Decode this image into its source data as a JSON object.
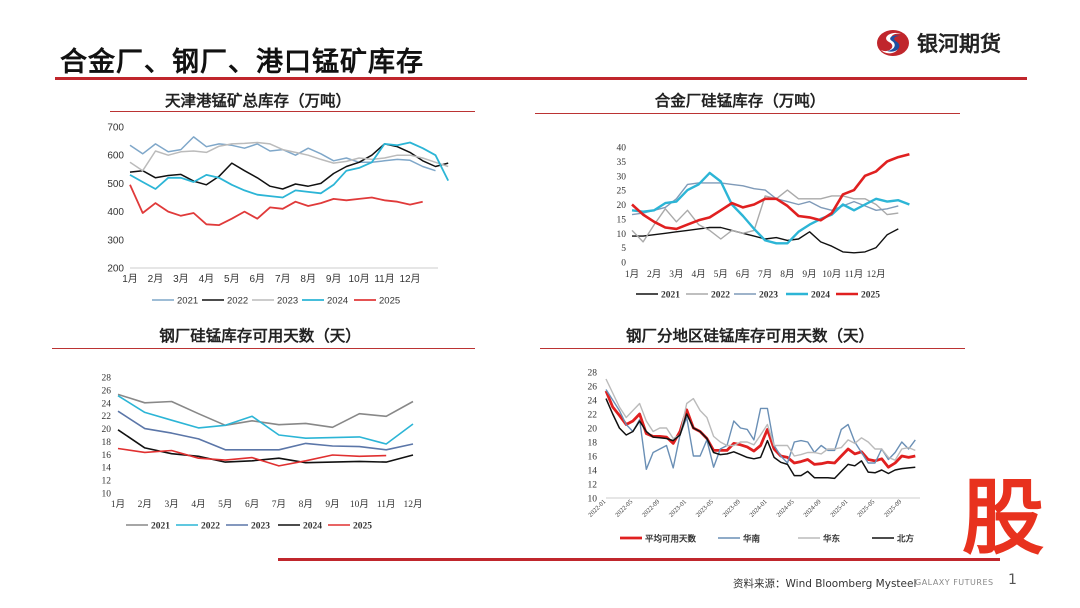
{
  "header": {
    "title": "合金厂、钢厂、港口锰矿库存",
    "logo_text": "银河期货",
    "brand_colors": {
      "red": "#c0262c",
      "blue": "#1f4fa0"
    }
  },
  "footer": {
    "source": "资料来源：Wind Bloomberg Mysteel",
    "brand_en": "GALAXY FUTURES",
    "page_number": "1",
    "watermark": "股"
  },
  "chart_data": [
    {
      "type": "line",
      "title": "天津港锰矿总库存（万吨）",
      "ylim": [
        200,
        700
      ],
      "yticks": [
        "200",
        "300",
        "400",
        "500",
        "600",
        "700"
      ],
      "xticks": [
        "1月",
        "2月",
        "3月",
        "4月",
        "5月",
        "6月",
        "7月",
        "8月",
        "9月",
        "10月",
        "11月",
        "12月"
      ],
      "legend": "bottom",
      "x_start_month": 1,
      "x_step_month": 0.5,
      "series": [
        {
          "name": "2021",
          "color": "#7fa7c9",
          "values": [
            635,
            605,
            640,
            612,
            620,
            665,
            630,
            640,
            635,
            625,
            640,
            615,
            620,
            600,
            625,
            605,
            580,
            590,
            575,
            575,
            580,
            585,
            582,
            560,
            545
          ]
        },
        {
          "name": "2022",
          "color": "#111111",
          "values": [
            540,
            545,
            520,
            528,
            532,
            508,
            495,
            525,
            572,
            545,
            520,
            490,
            480,
            498,
            490,
            500,
            535,
            560,
            575,
            600,
            640,
            630,
            610,
            580,
            560,
            572
          ]
        },
        {
          "name": "2023",
          "color": "#bbbbbb",
          "values": [
            575,
            545,
            615,
            600,
            612,
            615,
            610,
            632,
            640,
            642,
            645,
            640,
            620,
            610,
            600,
            585,
            572,
            578,
            590,
            585,
            590,
            600,
            600,
            590,
            575,
            560
          ]
        },
        {
          "name": "2024",
          "color": "#2cb5d6",
          "values": [
            530,
            505,
            480,
            520,
            520,
            505,
            530,
            520,
            495,
            475,
            460,
            455,
            450,
            475,
            470,
            465,
            495,
            545,
            555,
            575,
            640,
            635,
            645,
            625,
            600,
            510
          ]
        },
        {
          "name": "2025",
          "color": "#e03a3a",
          "values": [
            495,
            395,
            430,
            400,
            385,
            395,
            355,
            352,
            375,
            400,
            375,
            415,
            410,
            435,
            420,
            430,
            445,
            440,
            445,
            450,
            440,
            435,
            425,
            435
          ]
        }
      ]
    },
    {
      "type": "line",
      "title": "合金厂硅锰库存（万吨）",
      "ylim": [
        0,
        40
      ],
      "yticks": [
        "0",
        "5",
        "10",
        "15",
        "20",
        "25",
        "30",
        "35",
        "40"
      ],
      "xticks": [
        "1月",
        "2月",
        "3月",
        "4月",
        "5月",
        "6月",
        "7月",
        "8月",
        "9月",
        "10月",
        "11月",
        "12月"
      ],
      "legend": "bottom",
      "x_start_month": 1,
      "x_step_month": 0.5,
      "series": [
        {
          "name": "2021",
          "color": "#111111",
          "values": [
            9,
            9,
            9.5,
            10,
            10.5,
            11,
            11.5,
            12,
            12,
            11,
            10,
            9,
            8,
            8.5,
            7.5,
            8,
            10.5,
            7,
            5.5,
            3.5,
            3.2,
            3.5,
            5,
            9.5,
            11.5
          ]
        },
        {
          "name": "2022",
          "color": "#aaaaaa",
          "values": [
            11,
            7,
            13,
            18.5,
            14,
            18,
            13,
            11,
            8,
            11,
            10,
            11,
            23,
            22,
            25,
            22,
            22,
            22,
            23,
            23,
            22,
            22,
            20,
            16.5,
            17
          ]
        },
        {
          "name": "2023",
          "color": "#7f9ab8",
          "values": [
            16.5,
            17,
            18,
            19,
            22,
            27,
            27.5,
            27.5,
            27.5,
            27,
            26.5,
            25.5,
            25,
            22,
            21,
            20,
            21,
            19,
            18,
            19.5,
            21,
            19.5,
            18,
            18.5,
            19.5
          ]
        },
        {
          "name": "2024",
          "color": "#2cb5d6",
          "values": [
            18,
            17.5,
            18,
            20.5,
            21,
            25,
            27,
            31,
            28,
            20,
            16,
            11.5,
            7.5,
            6.5,
            6.5,
            10.5,
            13,
            15,
            16.5,
            20,
            18,
            20,
            22,
            21,
            21.5,
            20
          ]
        },
        {
          "name": "2025",
          "color": "#e02020",
          "values": [
            20,
            16.5,
            14,
            12,
            11.5,
            13,
            14.5,
            15.5,
            18,
            20.5,
            19,
            20,
            22,
            22,
            19.5,
            16,
            15.5,
            14.5,
            17,
            23.5,
            25,
            30,
            31.5,
            35,
            36.5,
            37.5
          ]
        }
      ]
    },
    {
      "type": "line",
      "title": "钢厂硅锰库存可用天数（天）",
      "ylim": [
        10,
        28
      ],
      "yticks": [
        "10",
        "12",
        "14",
        "16",
        "18",
        "20",
        "22",
        "24",
        "26",
        "28"
      ],
      "xticks": [
        "1月",
        "2月",
        "3月",
        "4月",
        "5月",
        "6月",
        "7月",
        "8月",
        "9月",
        "10月",
        "11月",
        "12月"
      ],
      "legend": "bottom",
      "x_start_month": 1,
      "x_step_month": 1,
      "series": [
        {
          "name": "2021",
          "color": "#888888",
          "values": [
            25.3,
            24,
            24.2,
            22.3,
            20.5,
            21.2,
            20.6,
            20.8,
            20.2,
            22.3,
            21.9,
            24.2
          ]
        },
        {
          "name": "2022",
          "color": "#2cb5d6",
          "values": [
            25.1,
            22.5,
            21.3,
            20.1,
            20.5,
            21.9,
            19,
            18.5,
            18.6,
            18.7,
            17.6,
            20.7
          ]
        },
        {
          "name": "2023",
          "color": "#5b76a8",
          "values": [
            22.7,
            20,
            19.3,
            18.4,
            16.7,
            16.7,
            16.7,
            17.7,
            17.3,
            17.2,
            16.7,
            17.6
          ]
        },
        {
          "name": "2024",
          "color": "#111111",
          "values": [
            19.8,
            17,
            16.1,
            15.7,
            14.8,
            15,
            15.4,
            14.7,
            14.8,
            14.9,
            14.8,
            15.9
          ]
        },
        {
          "name": "2025",
          "color": "#e03030",
          "values": [
            16.9,
            16.3,
            16.6,
            15.4,
            15.1,
            15.5,
            14.2,
            15,
            15.9,
            15.7,
            15.8
          ]
        }
      ]
    },
    {
      "type": "line",
      "title": "钢厂分地区硅锰库存可用天数（天）",
      "ylim": [
        10,
        28
      ],
      "yticks": [
        "10",
        "12",
        "14",
        "16",
        "18",
        "20",
        "22",
        "24",
        "26",
        "28"
      ],
      "xticks": [
        "2022-01",
        "2022-05",
        "2022-09",
        "2023-01",
        "2023-05",
        "2023-09",
        "2024-01",
        "2024-05",
        "2024-09",
        "2025-01",
        "2025-05",
        "2025-09"
      ],
      "legend": "bottom",
      "x_start": "2022-01",
      "x_step_month": 1,
      "series": [
        {
          "name": "平均可用天数",
          "color": "#e02020",
          "values": [
            25.3,
            23,
            21.8,
            20.5,
            21,
            22,
            19.2,
            18.8,
            18.8,
            18.7,
            17.8,
            19.5,
            22.6,
            20,
            19.5,
            18.5,
            16.8,
            16.8,
            16.8,
            17.8,
            17.6,
            17.3,
            16.7,
            17.5,
            19.8,
            17,
            16,
            15.8,
            15,
            15.2,
            15.5,
            14.8,
            14.9,
            15.1,
            15,
            16,
            17,
            16.3,
            16.6,
            15.5,
            15.3,
            15.6,
            14.4,
            15,
            16,
            15.8,
            16
          ]
        },
        {
          "name": "华南",
          "color": "#6a8fb5",
          "values": [
            25.5,
            24,
            22.5,
            20.5,
            19.5,
            21.2,
            14.1,
            16.5,
            17,
            17.5,
            14.3,
            19,
            21.5,
            16,
            16,
            18.3,
            14.4,
            17,
            17.5,
            21,
            20,
            19.8,
            18.3,
            22.8,
            22.8,
            17.5,
            16,
            15,
            18,
            18.2,
            18,
            16.5,
            17.5,
            16.8,
            16.8,
            19.8,
            20.5,
            18,
            16.5,
            15,
            15,
            17,
            15.5,
            16.5,
            18,
            17,
            18.3
          ]
        },
        {
          "name": "华东",
          "color": "#bbbbbb",
          "values": [
            27,
            25,
            23,
            21.5,
            22.5,
            23.5,
            21,
            19.5,
            20,
            20,
            18.5,
            19,
            23.5,
            24.2,
            22.5,
            21.5,
            18.8,
            18,
            17.5,
            17.5,
            18,
            18,
            17.6,
            19,
            20.5,
            17.5,
            17.5,
            17.5,
            16,
            16.2,
            16.5,
            16.5,
            16.3,
            17,
            17,
            17.2,
            18.3,
            17.8,
            18.6,
            18,
            17,
            17,
            15.8,
            15.4,
            17,
            17.2,
            16.8
          ]
        },
        {
          "name": "北方",
          "color": "#111111",
          "values": [
            24.2,
            22,
            20,
            19,
            19.5,
            21,
            19.5,
            18.7,
            18.6,
            18.5,
            18.2,
            19,
            22,
            20,
            19.5,
            18.5,
            16.5,
            16.2,
            16.3,
            16.6,
            16.2,
            15.8,
            15.6,
            15.8,
            18.2,
            15.8,
            15.1,
            14.8,
            13.2,
            13.2,
            13.8,
            12.9,
            12.9,
            12.9,
            12.8,
            13.8,
            14.8,
            14.6,
            15.3,
            13.7,
            13.6,
            14,
            13.5,
            14,
            14.2,
            14.3,
            14.4
          ]
        }
      ]
    }
  ]
}
